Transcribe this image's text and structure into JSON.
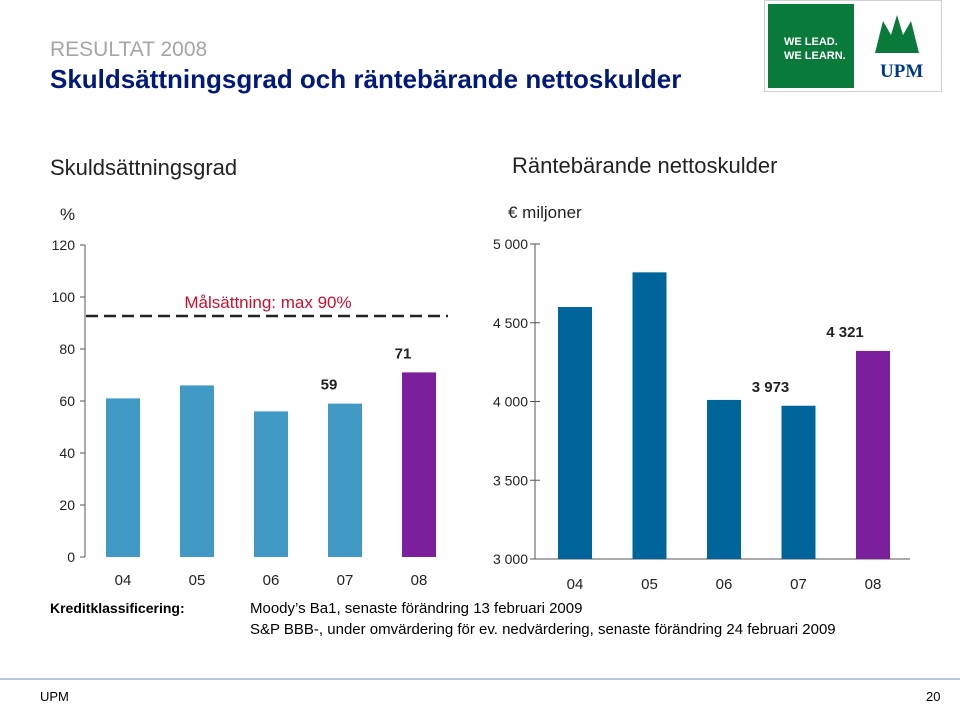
{
  "header": {
    "kicker": "RESULTAT 2008",
    "title": "Skuldsättningsgrad och räntebärande nettoskulder"
  },
  "logo": {
    "line1": "WE LEAD.",
    "line2": "WE LEARN.",
    "brand": "UPM",
    "colors": {
      "green": "#0a7a3a",
      "blue": "#003a80"
    }
  },
  "colors": {
    "bar_light": "#4199c6",
    "bar_dark": "#00659a",
    "bar_highlight": "#7b1f9c",
    "target_line": "#222222",
    "target_label": "#c8102e"
  },
  "chart_data": [
    {
      "type": "bar",
      "title": "Skuldsättningsgrad",
      "unit_label": "%",
      "categories": [
        "04",
        "05",
        "06",
        "07",
        "08"
      ],
      "values": [
        61,
        66,
        56,
        59,
        71
      ],
      "data_labels": [
        "",
        "",
        "",
        "59",
        "71"
      ],
      "ylim": [
        0,
        120
      ],
      "yticks": [
        0,
        20,
        40,
        60,
        80,
        100,
        120
      ],
      "ytick_labels": [
        "0",
        "20",
        "40",
        "60",
        "80",
        "100",
        "120"
      ],
      "target_value": 90,
      "target_label": "Målsättning: max 90%",
      "grid": false
    },
    {
      "type": "bar",
      "title": "Räntebärande nettoskulder",
      "unit_label": "€ miljoner",
      "categories": [
        "04",
        "05",
        "06",
        "07",
        "08"
      ],
      "values": [
        4600,
        4820,
        4010,
        3973,
        4321
      ],
      "data_labels": [
        "",
        "",
        "",
        "3 973",
        "4 321"
      ],
      "ylim": [
        3000,
        5000
      ],
      "yticks": [
        3000,
        3500,
        4000,
        4500,
        5000
      ],
      "ytick_labels": [
        "3 000",
        "3 500",
        "4 000",
        "4 500",
        "5 000"
      ],
      "grid": false
    }
  ],
  "credit": {
    "label": "Kreditklassificering:",
    "line1": "Moody’s Ba1, senaste förändring 13 februari 2009",
    "line2": "S&P BBB-, under omvärdering för ev. nedvärdering, senaste förändring 24 februari 2009"
  },
  "footer": {
    "left": "UPM",
    "page": "20"
  }
}
